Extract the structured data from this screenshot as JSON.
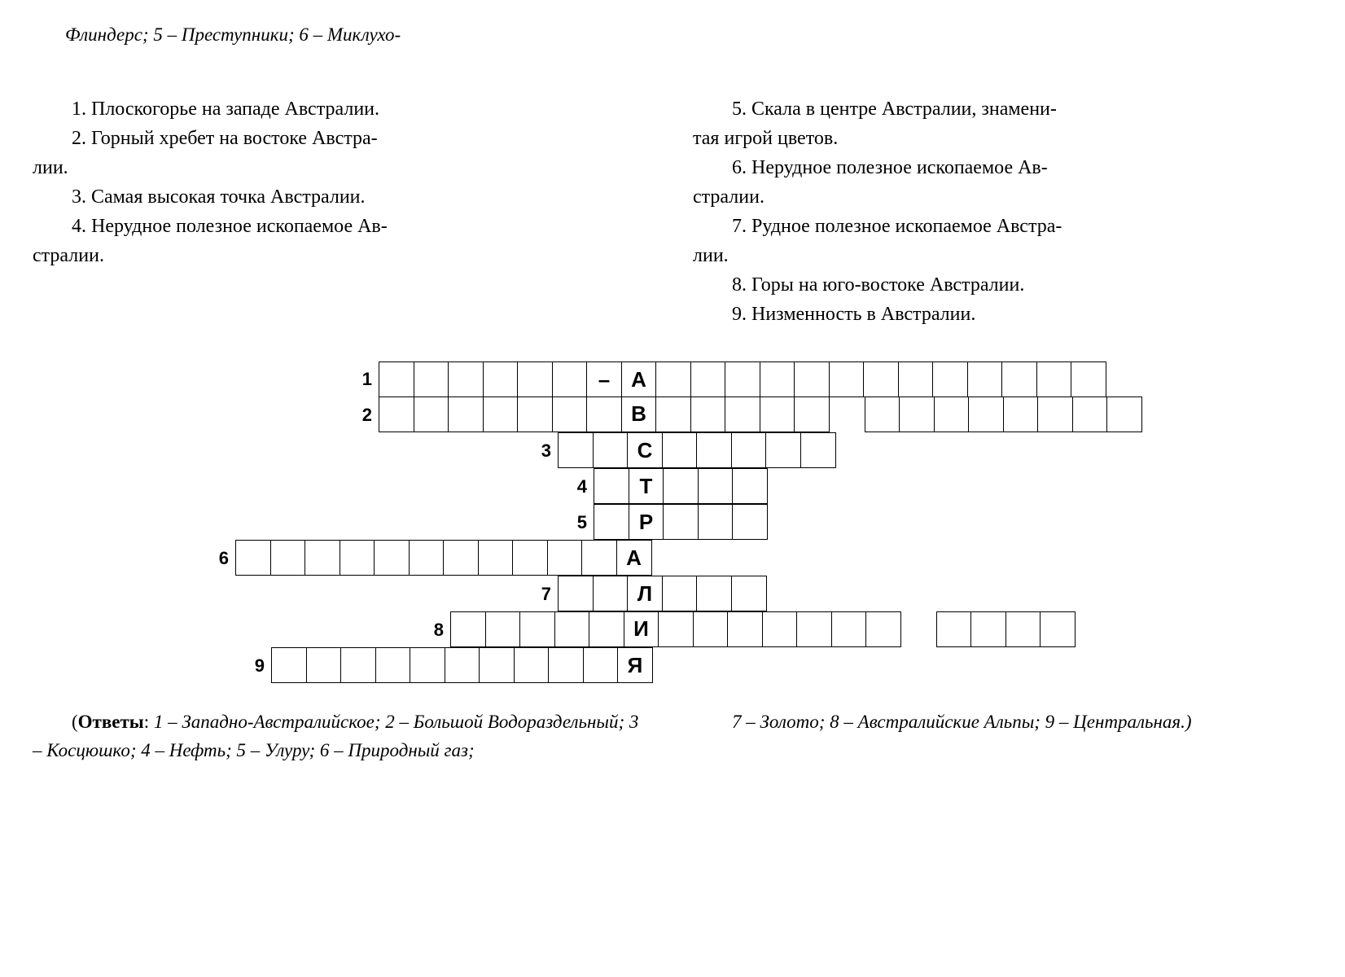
{
  "top_fragment": "Флиндерс; 5 – Преступники; 6 – Миклухо-",
  "clues_left": [
    {
      "n": "1.",
      "text": "Плоскогорье на западе Австралии."
    },
    {
      "n": "2.",
      "text": "Горный хребет на востоке Австра-"
    },
    {
      "n": "",
      "text": "лии."
    },
    {
      "n": "3.",
      "text": "Самая высокая точка Австралии."
    },
    {
      "n": "4.",
      "text": "Нерудное полезное ископаемое Ав-"
    },
    {
      "n": "",
      "text": "стралии."
    }
  ],
  "clues_right": [
    {
      "n": "5.",
      "text": "Скала в центре Австралии, знамени-"
    },
    {
      "n": "",
      "text": "тая игрой цветов."
    },
    {
      "n": "6.",
      "text": "Нерудное полезное ископаемое Ав-"
    },
    {
      "n": "",
      "text": "стралии."
    },
    {
      "n": "7.",
      "text": "Рудное полезное ископаемое Австра-"
    },
    {
      "n": "",
      "text": "лии."
    },
    {
      "n": "8.",
      "text": "Горы на юго-востоке Австралии."
    },
    {
      "n": "9.",
      "text": "Низменность в Австралии."
    }
  ],
  "crossword": {
    "axis_col": 8,
    "rows": [
      {
        "num": "1",
        "start": 1,
        "len": 21,
        "prefill": {
          "7": "–",
          "8": "А"
        }
      },
      {
        "num": "2",
        "start": 1,
        "len": 22,
        "prefill": {
          "8": "В"
        },
        "gaps": [
          14
        ]
      },
      {
        "num": "3",
        "start": 6,
        "len": 8,
        "prefill": {
          "8": "С"
        }
      },
      {
        "num": "4",
        "start": 7,
        "len": 5,
        "prefill": {
          "8": "Т"
        }
      },
      {
        "num": "5",
        "start": 7,
        "len": 5,
        "prefill": {
          "8": "Р"
        }
      },
      {
        "num": "6",
        "start": -3,
        "len": 12,
        "prefill": {
          "8": "А"
        }
      },
      {
        "num": "7",
        "start": 6,
        "len": 6,
        "prefill": {
          "8": "Л"
        }
      },
      {
        "num": "8",
        "start": 3,
        "len": 18,
        "prefill": {
          "8": "И"
        },
        "gaps": [
          16
        ]
      },
      {
        "num": "9",
        "start": -2,
        "len": 11,
        "prefill": {
          "8": "Я"
        }
      }
    ]
  },
  "answers": {
    "label": "Ответы",
    "left": "1 – Западно-Австралийское; 2 – Большой Водораздельный; 3 – Косцюшко; 4 – Нефть; 5 – Улуру; 6 – Природный газ;",
    "right": "7 – Золото; 8 – Австралийские Альпы; 9 – Центральная.)"
  },
  "colors": {
    "bg": "#ffffff",
    "fg": "#000000",
    "border": "#000000"
  },
  "fonts": {
    "body": "Georgia, serif",
    "grid": "Arial, sans-serif",
    "body_size": 24
  }
}
